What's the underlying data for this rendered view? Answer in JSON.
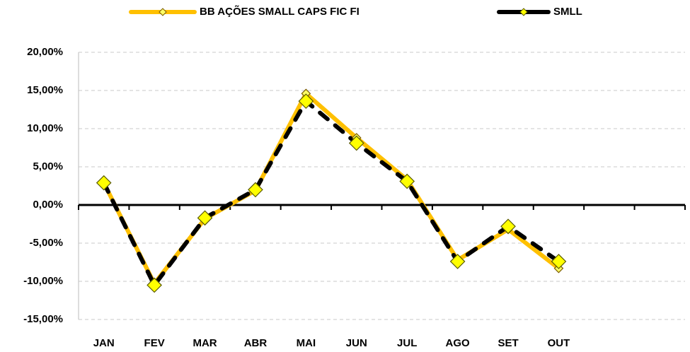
{
  "chart_data": {
    "type": "line",
    "categories": [
      "JAN",
      "FEV",
      "MAR",
      "ABR",
      "MAI",
      "JUN",
      "JUL",
      "AGO",
      "SET",
      "OUT",
      null,
      null
    ],
    "series": [
      {
        "name": "BB AÇÕES SMALL CAPS FIC FI",
        "color": "#ffc000",
        "values": [
          2.9,
          -10.3,
          -1.8,
          1.9,
          14.6,
          8.8,
          3.3,
          -7.2,
          -3.2,
          -8.3,
          null,
          null
        ]
      },
      {
        "name": "SMLL",
        "color": "#000000",
        "values": [
          2.9,
          -10.5,
          -1.7,
          2.0,
          13.6,
          8.1,
          3.1,
          -7.4,
          -2.8,
          -7.4,
          null,
          null
        ]
      }
    ],
    "ylim": [
      -15,
      20
    ],
    "yticks": [
      {
        "value": 20,
        "label": "20,00%"
      },
      {
        "value": 15,
        "label": "15,00%"
      },
      {
        "value": 10,
        "label": "10,00%"
      },
      {
        "value": 5,
        "label": "5,00%"
      },
      {
        "value": 0,
        "label": "0,00%"
      },
      {
        "value": -5,
        "label": "-5,00%"
      },
      {
        "value": -10,
        "label": "-10,00%"
      },
      {
        "value": -15,
        "label": "-15,00%"
      }
    ],
    "grid": true,
    "legend": "top"
  }
}
